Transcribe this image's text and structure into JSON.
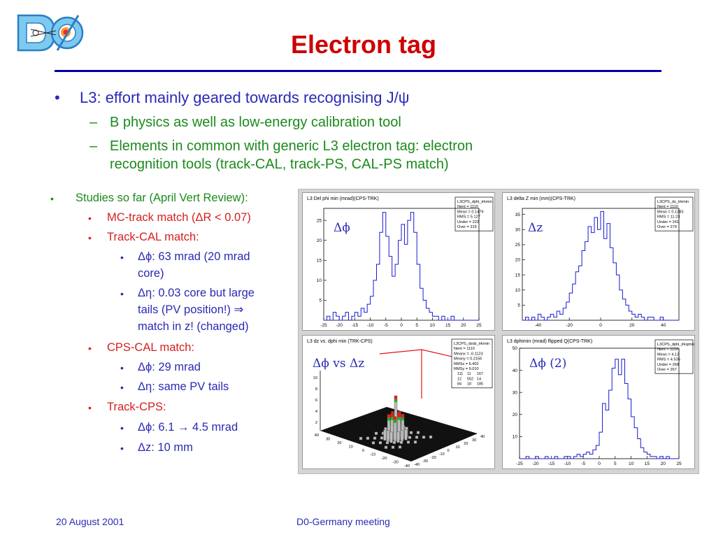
{
  "slide": {
    "title": "Electron tag",
    "logo_text": "DØ",
    "footer": {
      "date": "20 August 2001",
      "event": "D0-Germany meeting"
    }
  },
  "bullets": {
    "main_text": "L3: effort mainly geared towards recognising J/ψ",
    "sub1": "B physics as well as low-energy calibration tool",
    "sub2_line1": "Elements in common with generic L3 electron tag: electron",
    "sub2_line2": "recognition tools (track-CAL, track-PS, CAL-PS match)"
  },
  "studies": {
    "heading": "Studies so far (April Vert Review):",
    "mc_track": "MC-track match (ΔR < 0.07)",
    "track_cal": "Track-CAL match:",
    "tc_dphi_1": "Δϕ: 63 mrad (20 mrad",
    "tc_dphi_2": "core)",
    "tc_deta_1": "Δη: 0.03 core but large",
    "tc_deta_2": "tails (PV position!) ⇒",
    "tc_deta_3": "match in z! (changed)",
    "cps_cal": "CPS-CAL match:",
    "cc_dphi": "Δϕ: 29 mrad",
    "cc_deta": "Δη: same PV tails",
    "track_cps": "Track-CPS:",
    "tp_dphi": "Δϕ: 6.1 → 4.5 mrad",
    "tp_dz": "Δz: 10 mm"
  },
  "plots": {
    "colors": {
      "hist": "#1a1ad0",
      "frame": "#000000",
      "title": "#000000"
    },
    "p1": {
      "header": "L3 Del phi min (mrad)(CPS-TRK)",
      "label": "Δϕ",
      "stats": [
        "L3CPS_dphi_trkmin",
        "Nent = 1110",
        "Mean = 0.1479",
        "RMS = 5.127",
        "Under = 222",
        "Over = 315"
      ]
    },
    "p2": {
      "header": "L3 delta Z min (mm)(CPS-TRK)",
      "label": "Δz",
      "stats": [
        "L3CPS_dz_trkmin",
        "Nent = 1110",
        "Mean = 0.1283",
        "RMS = 11.23",
        "Under = 241",
        "Over = 279"
      ]
    },
    "p3": {
      "header": "L3 dz vs. dphi min (TRK-CPS)",
      "label": "Δϕ vs Δz",
      "stats": [
        "L3CPS_dzdz_trkmin",
        "Nent = 1110",
        "Meanx = -0.1123",
        "Meany = 0.2156",
        "RMSx = 6.402",
        "RMSy = 9.010"
      ],
      "grid": [
        [
          "111",
          "11",
          "167"
        ],
        [
          "12",
          "552",
          "14"
        ],
        [
          "84",
          "18",
          "185"
        ]
      ]
    },
    "p4": {
      "header": "L3 dphimin (mrad) flipped Q(CPS-TRK)",
      "label": "Δϕ (2)",
      "stats": [
        "L3CPS_dphi_trkqmin",
        "Nent = 1110",
        "Mean = 4.13",
        "RMS = 4.535",
        "Under = 268",
        "Over = 267"
      ]
    }
  },
  "chart_data": [
    {
      "type": "bar",
      "x": [
        -25,
        -24,
        -23,
        -22,
        -21,
        -20,
        -19,
        -18,
        -17,
        -16,
        -15,
        -14,
        -13,
        -12,
        -11,
        -10,
        -9,
        -8,
        -7,
        -6,
        -5,
        -4,
        -3,
        -2,
        -1,
        0,
        1,
        2,
        3,
        4,
        5,
        6,
        7,
        8,
        9,
        10,
        11,
        12,
        13,
        14,
        15,
        16,
        17,
        18,
        19,
        20,
        21,
        22,
        23,
        24
      ],
      "values": [
        0,
        1,
        0,
        2,
        1,
        0,
        1,
        2,
        0,
        1,
        2,
        1,
        3,
        2,
        4,
        6,
        10,
        14,
        22,
        27,
        21,
        16,
        11,
        14,
        20,
        24,
        19,
        25,
        27,
        22,
        14,
        8,
        5,
        3,
        2,
        1,
        1,
        0,
        1,
        0,
        0,
        1,
        0,
        0,
        0,
        0,
        0,
        0,
        0,
        0
      ],
      "xlim": [
        -25,
        25
      ],
      "ylim": [
        0,
        28
      ],
      "x_ticks": [
        "-25",
        "-20",
        "-15",
        "-10",
        "-5",
        "0",
        "5",
        "10",
        "15",
        "20",
        "25"
      ],
      "y_ticks": [
        "5",
        "10",
        "15",
        "20",
        "25"
      ]
    },
    {
      "type": "bar",
      "x": [
        -50,
        -48,
        -46,
        -44,
        -42,
        -40,
        -38,
        -36,
        -34,
        -32,
        -30,
        -28,
        -26,
        -24,
        -22,
        -20,
        -18,
        -16,
        -14,
        -12,
        -10,
        -8,
        -6,
        -4,
        -2,
        0,
        2,
        4,
        6,
        8,
        10,
        12,
        14,
        16,
        18,
        20,
        22,
        24,
        26,
        28,
        30,
        32,
        34,
        36,
        38,
        40,
        42,
        44,
        46,
        48
      ],
      "values": [
        0,
        1,
        0,
        1,
        0,
        2,
        1,
        0,
        1,
        2,
        1,
        3,
        2,
        4,
        6,
        9,
        12,
        16,
        18,
        23,
        26,
        31,
        29,
        34,
        30,
        36,
        27,
        32,
        24,
        19,
        15,
        10,
        7,
        5,
        3,
        2,
        1,
        2,
        1,
        0,
        1,
        1,
        0,
        0,
        1,
        0,
        0,
        0,
        0,
        0
      ],
      "xlim": [
        -50,
        50
      ],
      "ylim": [
        0,
        37
      ],
      "x_ticks": [
        "-40",
        "-20",
        "0",
        "20",
        "40"
      ],
      "y_ticks": [
        "5",
        "10",
        "15",
        "20",
        "25",
        "30",
        "35"
      ]
    },
    {
      "type": "heatmap",
      "x_ticks": [
        "-40",
        "-30",
        "-20",
        "-10",
        "0",
        "10",
        "20",
        "30",
        "40"
      ],
      "y_ticks": [
        "-40",
        "-30",
        "-20",
        "-10",
        "0",
        "10",
        "20",
        "30",
        "40"
      ],
      "z_ticks": [
        "2",
        "4",
        "6",
        "8",
        "10"
      ],
      "peak": [
        0,
        0
      ]
    },
    {
      "type": "bar",
      "x": [
        -25,
        -24,
        -23,
        -22,
        -21,
        -20,
        -19,
        -18,
        -17,
        -16,
        -15,
        -14,
        -13,
        -12,
        -11,
        -10,
        -9,
        -8,
        -7,
        -6,
        -5,
        -4,
        -3,
        -2,
        -1,
        0,
        1,
        2,
        3,
        4,
        5,
        6,
        7,
        8,
        9,
        10,
        11,
        12,
        13,
        14,
        15,
        16,
        17,
        18,
        19,
        20,
        21,
        22,
        23,
        24
      ],
      "values": [
        0,
        0,
        1,
        0,
        0,
        1,
        0,
        0,
        1,
        0,
        0,
        1,
        0,
        0,
        1,
        1,
        0,
        1,
        2,
        1,
        2,
        3,
        2,
        4,
        6,
        12,
        25,
        22,
        31,
        41,
        45,
        38,
        45,
        34,
        27,
        19,
        14,
        9,
        5,
        3,
        2,
        1,
        1,
        0,
        1,
        0,
        1,
        0,
        0,
        0
      ],
      "xlim": [
        -25,
        25
      ],
      "ylim": [
        0,
        50
      ],
      "x_ticks": [
        "-25",
        "-20",
        "-15",
        "-10",
        "-5",
        "0",
        "5",
        "10",
        "15",
        "20",
        "25"
      ],
      "y_ticks": [
        "10",
        "20",
        "30",
        "40",
        "50"
      ]
    }
  ]
}
